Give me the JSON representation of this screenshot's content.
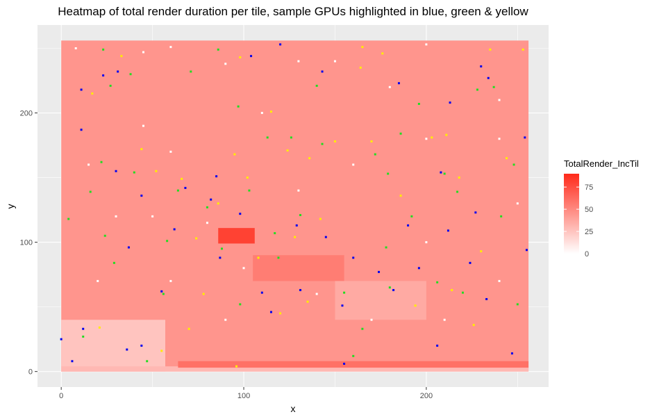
{
  "chart_data": {
    "type": "heatmap",
    "title": "Heatmap of total render duration per tile, sample GPUs highlighted in blue, green & yellow",
    "xlabel": "x",
    "ylabel": "y",
    "xlim": [
      -13,
      267
    ],
    "ylim": [
      -12,
      268
    ],
    "x_ticks": [
      0,
      100,
      200
    ],
    "y_ticks": [
      0,
      100,
      200
    ],
    "grid": true,
    "tile_extent": {
      "x": [
        0,
        256
      ],
      "y": [
        0,
        256
      ]
    },
    "fill_variable": "TotalRender_IncTil",
    "fill_scale": {
      "low": "#ffffff",
      "high": "#ff2a1a",
      "min": 0,
      "max": 90,
      "breaks": [
        0,
        25,
        50,
        75
      ]
    },
    "regions": [
      {
        "name": "typical tiles",
        "x": [
          0,
          256
        ],
        "y": [
          0,
          256
        ],
        "value": 45
      },
      {
        "name": "low block bottom-left",
        "x": [
          0,
          57
        ],
        "y": [
          0,
          40
        ],
        "value": 25
      },
      {
        "name": "bottom strip",
        "x": [
          0,
          256
        ],
        "y": [
          0,
          4
        ],
        "value": 30
      },
      {
        "name": "high band bottom",
        "x": [
          64,
          256
        ],
        "y": [
          3,
          8
        ],
        "value": 60
      },
      {
        "name": "hot spot",
        "x": [
          86,
          106
        ],
        "y": [
          99,
          111
        ],
        "value": 80
      },
      {
        "name": "warm patch",
        "x": [
          105,
          155
        ],
        "y": [
          70,
          90
        ],
        "value": 55
      },
      {
        "name": "cool patch",
        "x": [
          150,
          200
        ],
        "y": [
          40,
          70
        ],
        "value": 36
      }
    ],
    "highlight_colors": {
      "blue": "#0000ee",
      "green": "#22dd22",
      "yellow": "#ffee00",
      "white": "#ffffff"
    },
    "highlights": [
      {
        "group": "blue",
        "points": [
          [
            11,
            187
          ],
          [
            23,
            229
          ],
          [
            31,
            232
          ],
          [
            11,
            218
          ],
          [
            30,
            155
          ],
          [
            44,
            136
          ],
          [
            37,
            96
          ],
          [
            55,
            62
          ],
          [
            68,
            142
          ],
          [
            62,
            110
          ],
          [
            85,
            151
          ],
          [
            82,
            133
          ],
          [
            87,
            88
          ],
          [
            98,
            122
          ],
          [
            110,
            61
          ],
          [
            115,
            46
          ],
          [
            129,
            113
          ],
          [
            131,
            63
          ],
          [
            145,
            104
          ],
          [
            154,
            51
          ],
          [
            160,
            88
          ],
          [
            174,
            77
          ],
          [
            182,
            63
          ],
          [
            185,
            223
          ],
          [
            190,
            113
          ],
          [
            196,
            80
          ],
          [
            208,
            154
          ],
          [
            213,
            208
          ],
          [
            212,
            109
          ],
          [
            224,
            84
          ],
          [
            227,
            123
          ],
          [
            230,
            236
          ],
          [
            234,
            227
          ],
          [
            233,
            56
          ],
          [
            247,
            14
          ],
          [
            254,
            181
          ],
          [
            255,
            94
          ],
          [
            12,
            33
          ],
          [
            36,
            17
          ],
          [
            44,
            20
          ],
          [
            6,
            8
          ],
          [
            0,
            25
          ],
          [
            120,
            253
          ],
          [
            155,
            6
          ],
          [
            206,
            20
          ],
          [
            143,
            232
          ],
          [
            104,
            244
          ]
        ]
      },
      {
        "group": "green",
        "points": [
          [
            23,
            249
          ],
          [
            27,
            221
          ],
          [
            22,
            162
          ],
          [
            16,
            139
          ],
          [
            4,
            118
          ],
          [
            24,
            105
          ],
          [
            29,
            84
          ],
          [
            38,
            230
          ],
          [
            56,
            60
          ],
          [
            58,
            101
          ],
          [
            64,
            140
          ],
          [
            80,
            127
          ],
          [
            86,
            249
          ],
          [
            88,
            95
          ],
          [
            97,
            205
          ],
          [
            98,
            52
          ],
          [
            103,
            140
          ],
          [
            113,
            181
          ],
          [
            117,
            107
          ],
          [
            119,
            88
          ],
          [
            126,
            181
          ],
          [
            131,
            121
          ],
          [
            140,
            221
          ],
          [
            155,
            61
          ],
          [
            165,
            33
          ],
          [
            172,
            168
          ],
          [
            178,
            96
          ],
          [
            179,
            153
          ],
          [
            180,
            65
          ],
          [
            186,
            184
          ],
          [
            192,
            120
          ],
          [
            196,
            207
          ],
          [
            206,
            69
          ],
          [
            210,
            153
          ],
          [
            217,
            139
          ],
          [
            220,
            61
          ],
          [
            228,
            218
          ],
          [
            237,
            220
          ],
          [
            241,
            120
          ],
          [
            248,
            160
          ],
          [
            250,
            52
          ],
          [
            143,
            176
          ],
          [
            160,
            12
          ],
          [
            12,
            27
          ],
          [
            47,
            8
          ],
          [
            71,
            232
          ],
          [
            40,
            154
          ]
        ]
      },
      {
        "group": "yellow",
        "points": [
          [
            17,
            215
          ],
          [
            33,
            244
          ],
          [
            44,
            172
          ],
          [
            52,
            155
          ],
          [
            66,
            149
          ],
          [
            70,
            33
          ],
          [
            74,
            103
          ],
          [
            78,
            60
          ],
          [
            86,
            130
          ],
          [
            95,
            168
          ],
          [
            102,
            150
          ],
          [
            108,
            88
          ],
          [
            115,
            201
          ],
          [
            124,
            171
          ],
          [
            128,
            104
          ],
          [
            135,
            54
          ],
          [
            136,
            165
          ],
          [
            142,
            118
          ],
          [
            150,
            178
          ],
          [
            164,
            235
          ],
          [
            170,
            178
          ],
          [
            176,
            246
          ],
          [
            186,
            136
          ],
          [
            194,
            51
          ],
          [
            203,
            181
          ],
          [
            211,
            183
          ],
          [
            218,
            150
          ],
          [
            226,
            36
          ],
          [
            230,
            93
          ],
          [
            244,
            165
          ],
          [
            253,
            249
          ],
          [
            235,
            249
          ],
          [
            165,
            251
          ],
          [
            98,
            243
          ],
          [
            21,
            34
          ],
          [
            55,
            16
          ],
          [
            120,
            45
          ],
          [
            214,
            63
          ],
          [
            96,
            4
          ]
        ]
      },
      {
        "group": "white",
        "points": [
          [
            8,
            250
          ],
          [
            45,
            247
          ],
          [
            60,
            251
          ],
          [
            90,
            238
          ],
          [
            150,
            240
          ],
          [
            200,
            253
          ],
          [
            240,
            210
          ],
          [
            45,
            190
          ],
          [
            60,
            170
          ],
          [
            15,
            160
          ],
          [
            50,
            120
          ],
          [
            80,
            115
          ],
          [
            130,
            140
          ],
          [
            160,
            160
          ],
          [
            200,
            180
          ],
          [
            240,
            180
          ],
          [
            20,
            70
          ],
          [
            60,
            70
          ],
          [
            90,
            40
          ],
          [
            140,
            60
          ],
          [
            170,
            40
          ],
          [
            210,
            40
          ],
          [
            240,
            70
          ],
          [
            30,
            120
          ],
          [
            100,
            80
          ],
          [
            200,
            100
          ],
          [
            250,
            130
          ],
          [
            130,
            240
          ],
          [
            180,
            220
          ],
          [
            110,
            200
          ]
        ]
      }
    ]
  }
}
